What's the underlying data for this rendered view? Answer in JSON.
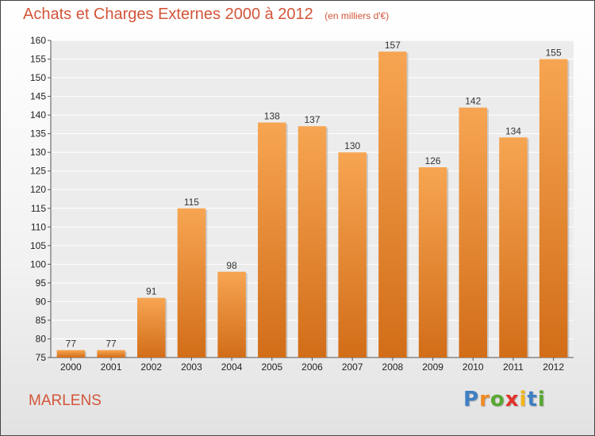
{
  "chart_data": {
    "type": "bar",
    "title": "Achats et Charges Externes 2000 à 2012",
    "unit": "(en milliers d'€)",
    "categories": [
      "2000",
      "2001",
      "2002",
      "2003",
      "2004",
      "2005",
      "2006",
      "2007",
      "2008",
      "2009",
      "2010",
      "2011",
      "2012"
    ],
    "values": [
      77,
      77,
      91,
      115,
      98,
      138,
      137,
      130,
      157,
      126,
      142,
      134,
      155
    ],
    "ylim": [
      75,
      160
    ],
    "yticks": [
      75,
      80,
      85,
      90,
      95,
      100,
      105,
      110,
      115,
      120,
      125,
      130,
      135,
      140,
      145,
      150,
      155,
      160
    ],
    "grid": true,
    "bar_color": "#f0953a"
  },
  "commune": "MARLENS",
  "logo": {
    "letters": [
      "P",
      "r",
      "o",
      "x",
      "i",
      "t",
      "i"
    ],
    "colors": [
      "#3f7fc4",
      "#f08a23",
      "#58a832",
      "#e2322a",
      "#f2b61b",
      "#3f7fc4",
      "#58a832"
    ]
  }
}
